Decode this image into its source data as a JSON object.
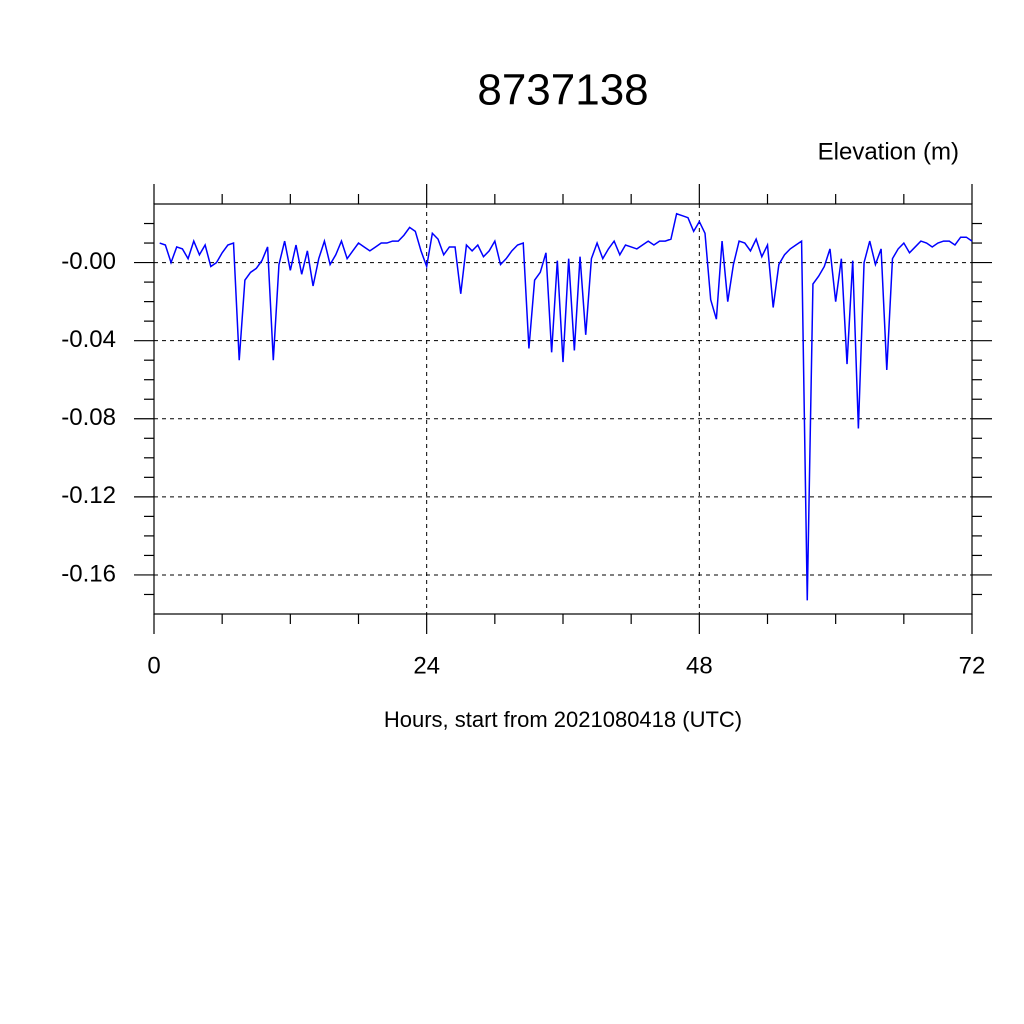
{
  "chart_data": {
    "type": "line",
    "title": "8737138",
    "subtitle": "Elevation (m)",
    "x_label": "Hours, start from 2021080418 (UTC)",
    "xlim": [
      0,
      72
    ],
    "ylim": [
      -0.18,
      0.03
    ],
    "xticks": [
      0,
      24,
      48,
      72
    ],
    "yticks": [
      {
        "value": 0,
        "label": "-0.00"
      },
      -0.04,
      -0.08,
      -0.12,
      -0.16
    ],
    "xminor_ticks": [
      6,
      12,
      18,
      30,
      36,
      42,
      54,
      60,
      66
    ],
    "yminor_ticks": [
      0.02,
      0.01,
      -0.01,
      -0.02,
      -0.03,
      -0.05,
      -0.06,
      -0.07,
      -0.09,
      -0.1,
      -0.11,
      -0.13,
      -0.14,
      -0.15,
      -0.17
    ],
    "grid": true,
    "x": [
      0.5,
      1,
      1.5,
      2,
      2.5,
      3,
      3.5,
      4,
      4.5,
      5,
      5.5,
      6,
      6.5,
      7,
      7.5,
      8,
      8.5,
      9,
      9.5,
      10,
      10.5,
      11,
      11.5,
      12,
      12.5,
      13,
      13.5,
      14,
      14.5,
      15,
      15.5,
      16,
      16.5,
      17,
      17.5,
      18,
      18.5,
      19,
      19.5,
      20,
      20.5,
      21,
      21.5,
      22,
      22.5,
      23,
      23.5,
      24,
      24.5,
      25,
      25.5,
      26,
      26.5,
      27,
      27.5,
      28,
      28.5,
      29,
      29.5,
      30,
      30.5,
      31,
      31.5,
      32,
      32.5,
      33,
      33.5,
      34,
      34.5,
      35,
      35.5,
      36,
      36.5,
      37,
      37.5,
      38,
      38.5,
      39,
      39.5,
      40,
      40.5,
      41,
      41.5,
      42,
      42.5,
      43,
      43.5,
      44,
      44.5,
      45,
      45.5,
      46,
      46.5,
      47,
      47.5,
      48,
      48.5,
      49,
      49.5,
      50,
      50.5,
      51,
      51.5,
      52,
      52.5,
      53,
      53.5,
      54,
      54.5,
      55,
      55.5,
      56,
      56.5,
      57,
      57.5,
      58,
      58.5,
      59,
      59.5,
      60,
      60.5,
      61,
      61.5,
      62,
      62.5,
      63,
      63.5,
      64,
      64.5,
      65,
      65.5,
      66,
      66.5,
      67,
      67.5,
      68,
      68.5,
      69,
      69.5,
      70,
      70.5,
      71,
      71.5,
      72
    ],
    "series": [
      {
        "name": "Elevation",
        "color": "#0000ff",
        "values": [
          0.01,
          0.009,
          0.0,
          0.008,
          0.007,
          0.002,
          0.011,
          0.004,
          0.009,
          -0.002,
          0.0,
          0.005,
          0.009,
          0.01,
          -0.05,
          -0.009,
          -0.005,
          -0.003,
          0.001,
          0.008,
          -0.05,
          -0.001,
          0.011,
          -0.004,
          0.009,
          -0.006,
          0.006,
          -0.012,
          0.002,
          0.011,
          -0.001,
          0.004,
          0.011,
          0.002,
          0.006,
          0.01,
          0.008,
          0.006,
          0.008,
          0.01,
          0.01,
          0.011,
          0.011,
          0.014,
          0.018,
          0.016,
          0.006,
          -0.002,
          0.015,
          0.012,
          0.004,
          0.008,
          0.008,
          -0.016,
          0.009,
          0.006,
          0.009,
          0.003,
          0.006,
          0.011,
          -0.001,
          0.002,
          0.006,
          0.009,
          0.01,
          -0.044,
          -0.009,
          -0.005,
          0.005,
          -0.046,
          0.001,
          -0.051,
          0.002,
          -0.045,
          0.003,
          -0.037,
          0.002,
          0.01,
          0.002,
          0.007,
          0.011,
          0.004,
          0.009,
          0.008,
          0.007,
          0.009,
          0.011,
          0.009,
          0.011,
          0.011,
          0.012,
          0.025,
          0.024,
          0.023,
          0.016,
          0.021,
          0.015,
          -0.019,
          -0.029,
          0.011,
          -0.02,
          -0.001,
          0.011,
          0.01,
          0.006,
          0.012,
          0.003,
          0.009,
          -0.023,
          -0.001,
          0.004,
          0.007,
          0.009,
          0.011,
          -0.173,
          -0.011,
          -0.007,
          -0.002,
          0.007,
          -0.02,
          0.002,
          -0.052,
          0.001,
          -0.085,
          0.0,
          0.011,
          -0.001,
          0.007,
          -0.055,
          0.002,
          0.007,
          0.01,
          0.005,
          0.008,
          0.011,
          0.01,
          0.008,
          0.01,
          0.011,
          0.011,
          0.009,
          0.013,
          0.013,
          0.011
        ]
      }
    ]
  }
}
